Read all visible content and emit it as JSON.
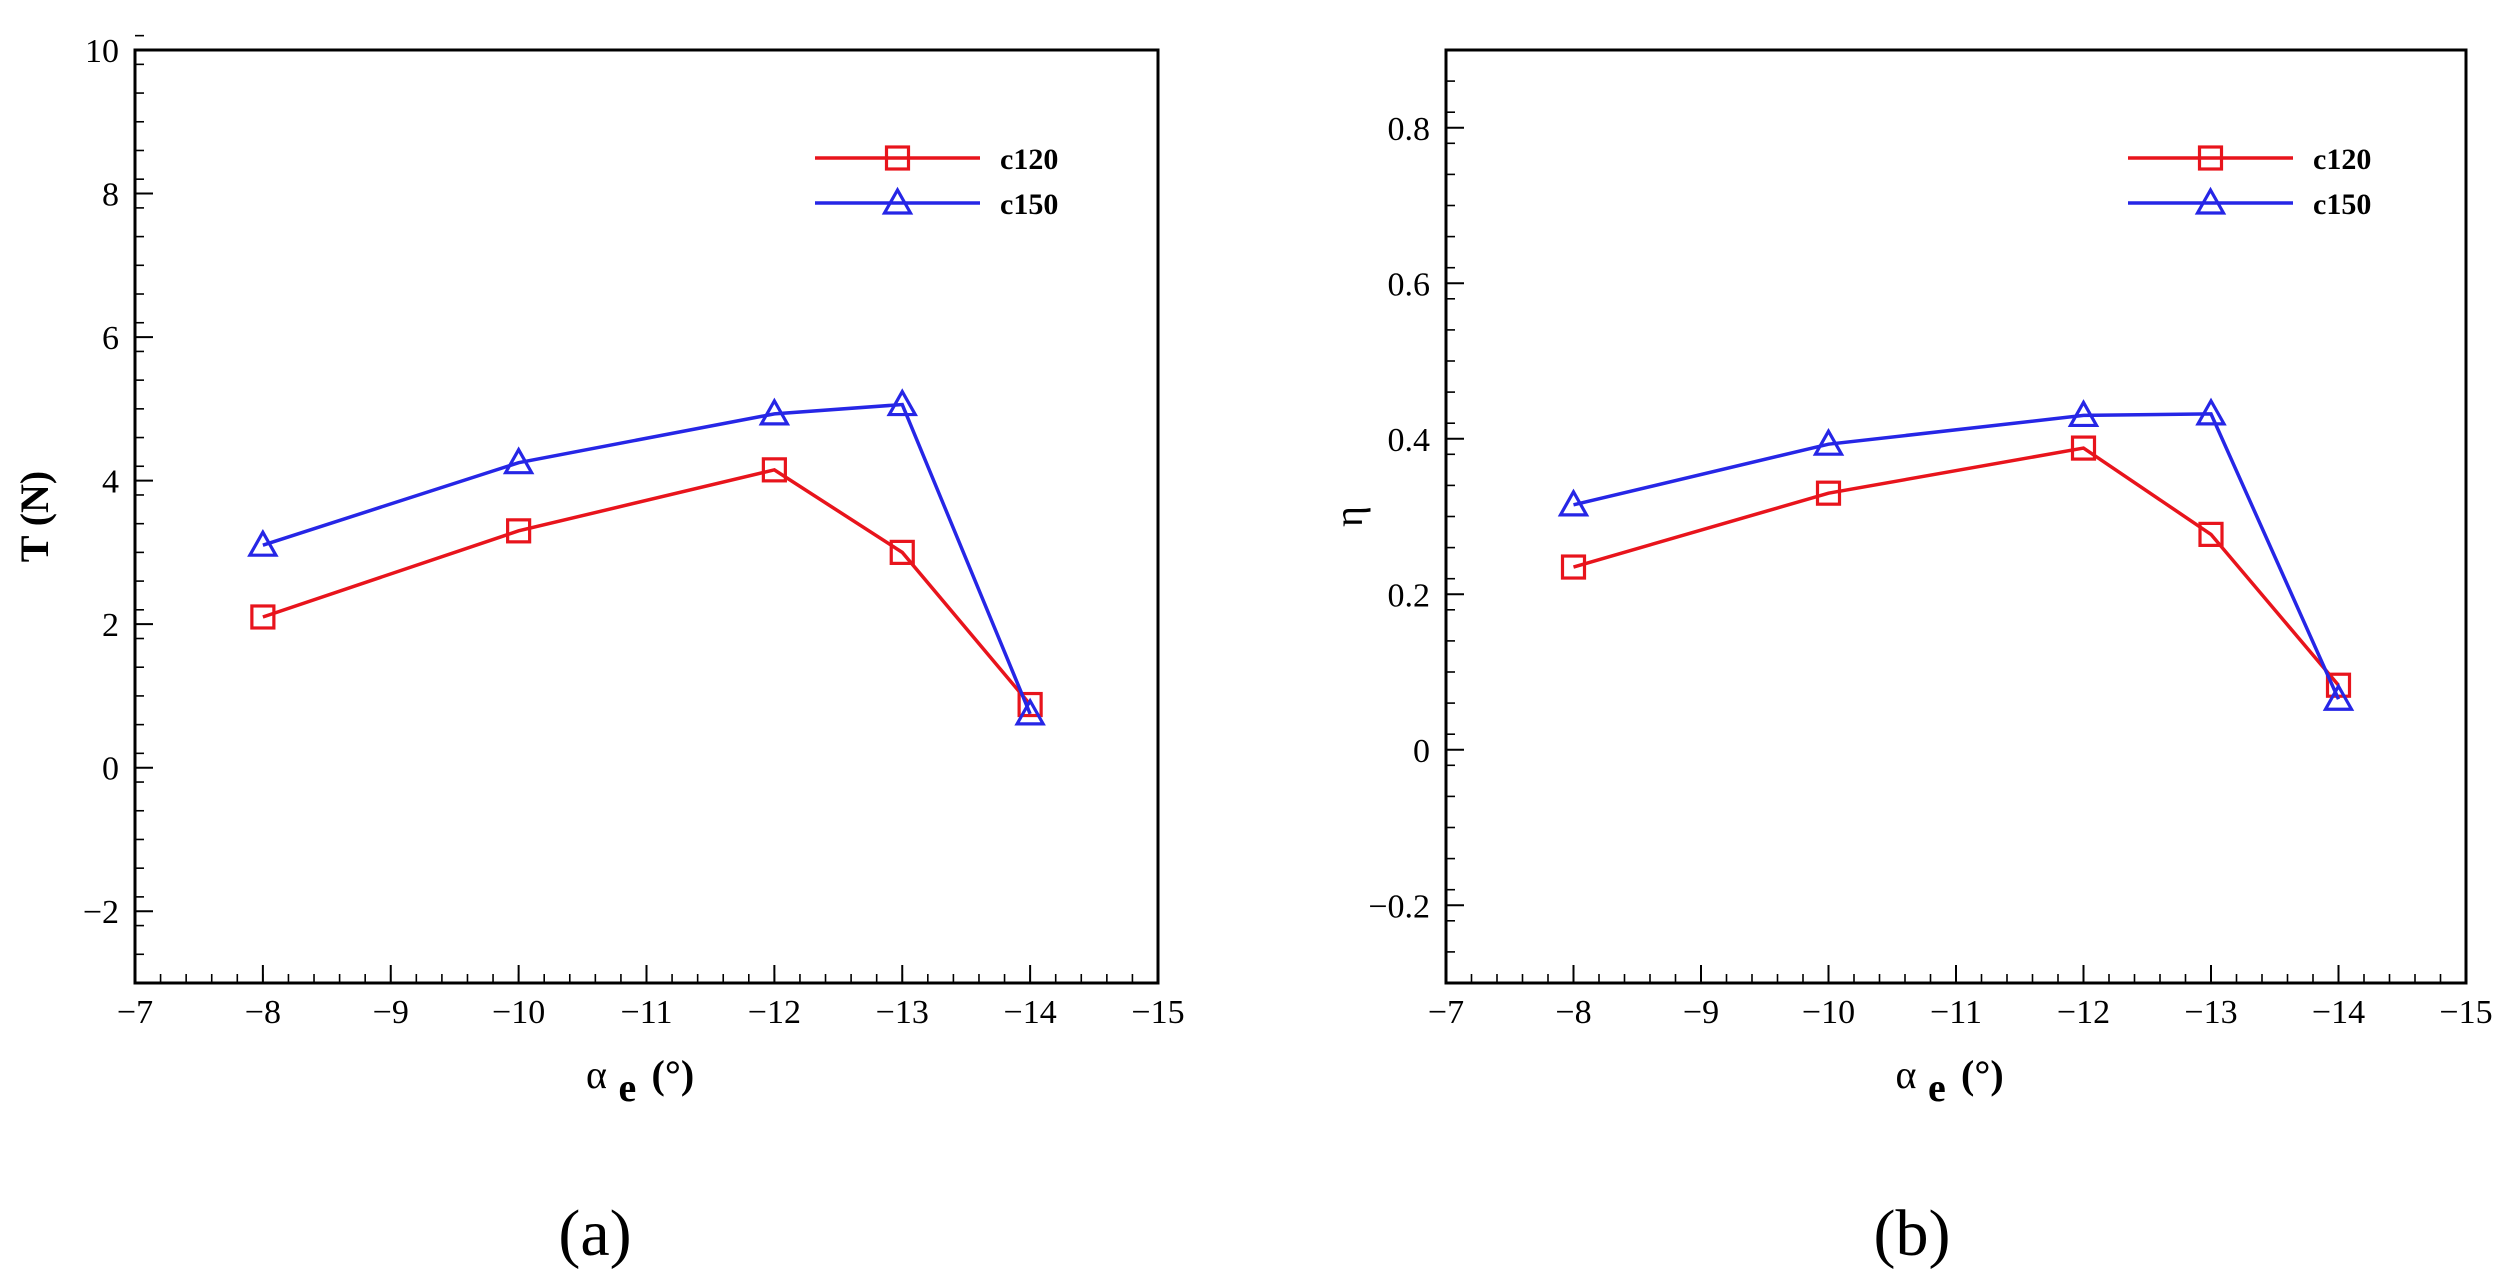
{
  "chart_data": [
    {
      "type": "line",
      "caption": "(a)",
      "ylabel": "T (N)",
      "xlabel_symbol": "α",
      "xlabel_sub": "e",
      "xlabel_unit": "(°)",
      "xlim": [
        -7,
        -15
      ],
      "ylim": [
        -3,
        10
      ],
      "xticks": [
        -7,
        -8,
        -9,
        -10,
        -11,
        -12,
        -13,
        -14,
        -15
      ],
      "xtick_labels": [
        "−7",
        "−8",
        "−9",
        "−10",
        "−11",
        "−12",
        "−13",
        "−14",
        "−15"
      ],
      "yticks": [
        -2,
        0,
        2,
        4,
        6,
        8,
        10
      ],
      "ytick_labels": [
        "−2",
        "0",
        "2",
        "4",
        "6",
        "8",
        "10"
      ],
      "ytick_minor_step": 0.4,
      "legend_position": "top-right",
      "series": [
        {
          "name": "c120",
          "color": "#e8141c",
          "marker": "square",
          "x": [
            -8,
            -10,
            -12,
            -13,
            -14
          ],
          "y": [
            2.1,
            3.3,
            4.15,
            3.0,
            0.88
          ]
        },
        {
          "name": "c150",
          "color": "#2626e6",
          "marker": "triangle",
          "x": [
            -8,
            -10,
            -12,
            -13,
            -14
          ],
          "y": [
            3.1,
            4.25,
            4.93,
            5.06,
            0.75
          ]
        }
      ]
    },
    {
      "type": "line",
      "caption": "(b)",
      "ylabel": "η",
      "xlabel_symbol": "α",
      "xlabel_sub": "e",
      "xlabel_unit": "(°)",
      "xlim": [
        -7,
        -15
      ],
      "ylim": [
        -0.3,
        0.9
      ],
      "xticks": [
        -7,
        -8,
        -9,
        -10,
        -11,
        -12,
        -13,
        -14,
        -15
      ],
      "xtick_labels": [
        "−7",
        "−8",
        "−9",
        "−10",
        "−11",
        "−12",
        "−13",
        "−14",
        "−15"
      ],
      "yticks": [
        -0.2,
        0,
        0.2,
        0.4,
        0.6,
        0.8
      ],
      "ytick_labels": [
        "−0.2",
        "0",
        "0.2",
        "0.4",
        "0.6",
        "0.8"
      ],
      "ytick_minor_step": 0.04,
      "legend_position": "top-right",
      "series": [
        {
          "name": "c120",
          "color": "#e8141c",
          "marker": "square",
          "x": [
            -8,
            -10,
            -12,
            -13,
            -14
          ],
          "y": [
            0.235,
            0.33,
            0.388,
            0.277,
            0.083
          ]
        },
        {
          "name": "c150",
          "color": "#2626e6",
          "marker": "triangle",
          "x": [
            -8,
            -10,
            -12,
            -13,
            -14
          ],
          "y": [
            0.315,
            0.393,
            0.43,
            0.432,
            0.065
          ]
        }
      ]
    }
  ]
}
